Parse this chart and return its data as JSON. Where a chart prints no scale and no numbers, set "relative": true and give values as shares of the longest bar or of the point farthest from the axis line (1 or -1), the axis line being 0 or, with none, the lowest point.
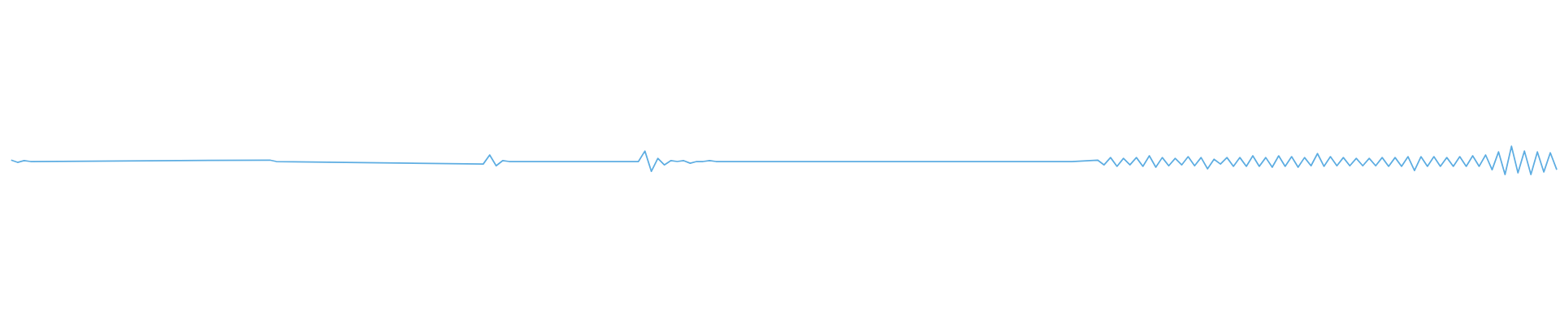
{
  "chart_data": {
    "type": "line",
    "relative": true,
    "categories": [
      null,
      null,
      null,
      null,
      null,
      null,
      null,
      null,
      null,
      null,
      null,
      null,
      null,
      null,
      null,
      null,
      null,
      null,
      null,
      null,
      null,
      null,
      null,
      null,
      null,
      null,
      null,
      null,
      null,
      null,
      null,
      null,
      null,
      null,
      null,
      null,
      null,
      null,
      null,
      null,
      null,
      null,
      null,
      null,
      null,
      null,
      null,
      null,
      null,
      null,
      null,
      null,
      null,
      null,
      null,
      null,
      null,
      null,
      null,
      null,
      null,
      null,
      null,
      null,
      null,
      null,
      null,
      null,
      null,
      null,
      null,
      null,
      null,
      null,
      null,
      null,
      null,
      null,
      null,
      null,
      null,
      null,
      null,
      null,
      null,
      null,
      null,
      null,
      null,
      null,
      null,
      null,
      null,
      null,
      null,
      null,
      null,
      null,
      null,
      null,
      null,
      null,
      null,
      null,
      null,
      null,
      null,
      null,
      null,
      null,
      null,
      null,
      null,
      null,
      null,
      null,
      null,
      null,
      null,
      null,
      null,
      null,
      null,
      null,
      null,
      null,
      null,
      null,
      null,
      null,
      null,
      null,
      null,
      null,
      null,
      null,
      null,
      null,
      null,
      null,
      null,
      null,
      null,
      null,
      null,
      null,
      null,
      null,
      null,
      null,
      null,
      null,
      null,
      null,
      null,
      null,
      null,
      null,
      null,
      null,
      null,
      null,
      null,
      null,
      null,
      null,
      null,
      null,
      null,
      null,
      null,
      null,
      null,
      null,
      null,
      null,
      null,
      null,
      null,
      null,
      null,
      null,
      null,
      null,
      null,
      null,
      null,
      null,
      null,
      null,
      null,
      null,
      null,
      null,
      null,
      null,
      null,
      null,
      null,
      null,
      null,
      null,
      null,
      null,
      null,
      null,
      null,
      null,
      null,
      null,
      null,
      null,
      null,
      null,
      null,
      null,
      null,
      null,
      null,
      null,
      null,
      null,
      null,
      null,
      null,
      null,
      null,
      null,
      null,
      null,
      null,
      null,
      null,
      null,
      null,
      null,
      null,
      null,
      null,
      null
    ],
    "series": [
      {
        "color": "#5dade2",
        "values": [
          0.51,
          0.43,
          0.49,
          0.46,
          null,
          null,
          null,
          null,
          null,
          null,
          null,
          null,
          null,
          null,
          null,
          null,
          null,
          null,
          null,
          null,
          null,
          null,
          null,
          null,
          null,
          null,
          null,
          null,
          null,
          null,
          null,
          null,
          null,
          null,
          null,
          null,
          null,
          null,
          null,
          null,
          0.51,
          0.46,
          null,
          null,
          null,
          null,
          null,
          null,
          null,
          null,
          null,
          null,
          null,
          null,
          null,
          null,
          null,
          null,
          null,
          null,
          null,
          null,
          null,
          null,
          null,
          null,
          null,
          null,
          null,
          null,
          null,
          null,
          null,
          0.37,
          0.69,
          0.31,
          0.49,
          0.46,
          null,
          null,
          null,
          null,
          null,
          null,
          null,
          null,
          null,
          null,
          null,
          null,
          null,
          null,
          null,
          null,
          null,
          null,
          null,
          0.46,
          0.83,
          0.11,
          0.57,
          0.34,
          0.49,
          0.46,
          0.49,
          0.4,
          0.46,
          0.46,
          0.49,
          0.46,
          null,
          null,
          null,
          null,
          0.46,
          0.46,
          0.46,
          0.46,
          0.46,
          0.46,
          0.46,
          0.46,
          0.46,
          0.46,
          0.46,
          null,
          null,
          null,
          0.46,
          0.46,
          null,
          null,
          null,
          null,
          null,
          null,
          null,
          null,
          null,
          null,
          null,
          null,
          null,
          null,
          0.46,
          0.46,
          null,
          null,
          null,
          null,
          null,
          null,
          null,
          null,
          null,
          0.46,
          0.46,
          null,
          null,
          null,
          null,
          null,
          0.46,
          0.46,
          0.46,
          null,
          null,
          null,
          0.51,
          0.34,
          0.6,
          0.29,
          0.57,
          0.34,
          0.6,
          0.29,
          0.66,
          0.26,
          0.6,
          0.31,
          0.57,
          0.34,
          0.63,
          0.31,
          0.6,
          0.2,
          0.54,
          0.37,
          0.6,
          0.29,
          0.6,
          0.29,
          0.66,
          0.29,
          0.6,
          0.26,
          0.66,
          0.29,
          0.63,
          0.26,
          0.6,
          0.31,
          0.74,
          0.29,
          0.63,
          0.31,
          0.6,
          0.31,
          0.57,
          0.31,
          0.57,
          0.31,
          0.6,
          0.29,
          0.6,
          0.29,
          0.63,
          0.14,
          0.63,
          0.29,
          0.63,
          0.29,
          0.6,
          0.29,
          0.63,
          0.29,
          0.66,
          0.29,
          0.69,
          0.17,
          0.8,
          0,
          1,
          0.06,
          0.83,
          0,
          0.8,
          0.09,
          0.77,
          0.17
        ]
      }
    ]
  }
}
